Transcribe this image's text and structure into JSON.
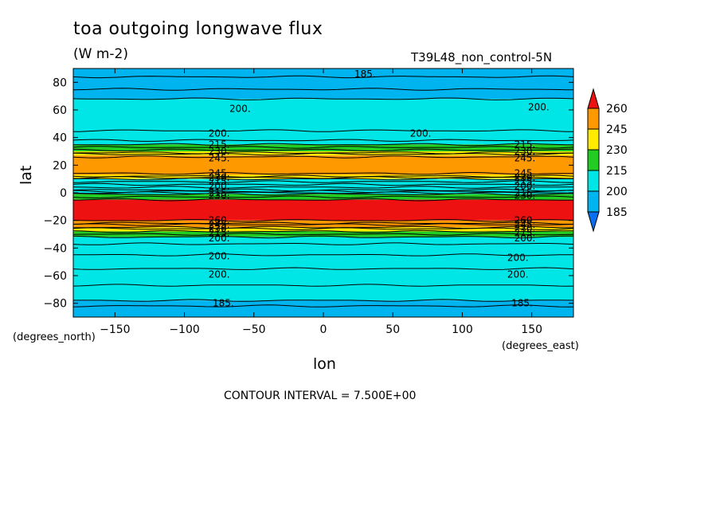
{
  "chart_data": {
    "type": "contour",
    "title": "toa outgoing longwave flux",
    "units": "(W m-2)",
    "dataset": "T39L48_non_control-5N",
    "xlabel": "lon",
    "ylabel": "lat",
    "xunits": "(degrees_east)",
    "yunits": "(degrees_north)",
    "xlim": [
      -180,
      180
    ],
    "ylim": [
      -90,
      90
    ],
    "xticks": [
      -150,
      -100,
      -50,
      0,
      50,
      100,
      150
    ],
    "yticks": [
      -80,
      -60,
      -40,
      -20,
      0,
      20,
      40,
      60,
      80
    ],
    "contour_interval": "CONTOUR INTERVAL = 7.500E+00",
    "colorbar_levels": [
      "185",
      "200",
      "215",
      "230",
      "245",
      "260"
    ],
    "colorbar_colors": [
      "#0a6ef0",
      "#00b4f0",
      "#00e6e6",
      "#22cc22",
      "#ffea00",
      "#ff9900",
      "#ee1111"
    ],
    "bands": [
      {
        "lat_top": 90,
        "lat_bottom": 68,
        "value": 195
      },
      {
        "lat_top": 68,
        "lat_bottom": 45,
        "value": 200
      },
      {
        "lat_top": 45,
        "lat_bottom": 35,
        "value": 205
      },
      {
        "lat_top": 35,
        "lat_bottom": 30,
        "value": 220
      },
      {
        "lat_top": 30,
        "lat_bottom": 27,
        "value": 235
      },
      {
        "lat_top": 27,
        "lat_bottom": 13,
        "value": 250
      },
      {
        "lat_top": 13,
        "lat_bottom": 10,
        "value": 235
      },
      {
        "lat_top": 10,
        "lat_bottom": 4,
        "value": 210
      },
      {
        "lat_top": 4,
        "lat_bottom": -1,
        "value": 205
      },
      {
        "lat_top": -1,
        "lat_bottom": -5,
        "value": 215
      },
      {
        "lat_top": -5,
        "lat_bottom": -20,
        "value": 265
      },
      {
        "lat_top": -20,
        "lat_bottom": -25,
        "value": 250
      },
      {
        "lat_top": -25,
        "lat_bottom": -28,
        "value": 235
      },
      {
        "lat_top": -28,
        "lat_bottom": -32,
        "value": 220
      },
      {
        "lat_top": -32,
        "lat_bottom": -45,
        "value": 200
      },
      {
        "lat_top": -45,
        "lat_bottom": -55,
        "value": 205
      },
      {
        "lat_top": -55,
        "lat_bottom": -78,
        "value": 200
      },
      {
        "lat_top": -78,
        "lat_bottom": -90,
        "value": 185
      }
    ],
    "contour_lines_lat": [
      84,
      75,
      68,
      45,
      38,
      35,
      33,
      31,
      29,
      28,
      26,
      14,
      12,
      11,
      10,
      8,
      6,
      4,
      2,
      1,
      0,
      -1,
      -3,
      -5,
      -20,
      -22,
      -23,
      -25,
      -26,
      -28,
      -30,
      -32,
      -37,
      -45,
      -55,
      -67,
      -78,
      -82
    ],
    "contour_labels": [
      {
        "text": "185.",
        "lon": 30,
        "lat": 86
      },
      {
        "text": "200.",
        "lon": -60,
        "lat": 61
      },
      {
        "text": "200.",
        "lon": 155,
        "lat": 62
      },
      {
        "text": "200.",
        "lon": 70,
        "lat": 43
      },
      {
        "text": "200.",
        "lon": -75,
        "lat": 43
      },
      {
        "text": "215.",
        "lon": -75,
        "lat": 35
      },
      {
        "text": "230.",
        "lon": -75,
        "lat": 30
      },
      {
        "text": "245.",
        "lon": -75,
        "lat": 25
      },
      {
        "text": "215.",
        "lon": 145,
        "lat": 35
      },
      {
        "text": "230.",
        "lon": 145,
        "lat": 30
      },
      {
        "text": "245.",
        "lon": 145,
        "lat": 25
      },
      {
        "text": "245.",
        "lon": -75,
        "lat": 14
      },
      {
        "text": "230.",
        "lon": -75,
        "lat": 11
      },
      {
        "text": "215.",
        "lon": -75,
        "lat": 8
      },
      {
        "text": "200.",
        "lon": -75,
        "lat": 5
      },
      {
        "text": "215.",
        "lon": -75,
        "lat": 0
      },
      {
        "text": "230.",
        "lon": -75,
        "lat": -2
      },
      {
        "text": "245.",
        "lon": 145,
        "lat": 14
      },
      {
        "text": "230.",
        "lon": 145,
        "lat": 11
      },
      {
        "text": "215.",
        "lon": 145,
        "lat": 8
      },
      {
        "text": "200.",
        "lon": 145,
        "lat": 5
      },
      {
        "text": "215.",
        "lon": 145,
        "lat": 0
      },
      {
        "text": "230.",
        "lon": 145,
        "lat": -2
      },
      {
        "text": "260.",
        "lon": -75,
        "lat": -20
      },
      {
        "text": "245.",
        "lon": -75,
        "lat": -23
      },
      {
        "text": "230.",
        "lon": -75,
        "lat": -26
      },
      {
        "text": "215.",
        "lon": -75,
        "lat": -29
      },
      {
        "text": "200.",
        "lon": -75,
        "lat": -33
      },
      {
        "text": "260.",
        "lon": 145,
        "lat": -20
      },
      {
        "text": "245.",
        "lon": 145,
        "lat": -23
      },
      {
        "text": "230.",
        "lon": 145,
        "lat": -26
      },
      {
        "text": "215.",
        "lon": 145,
        "lat": -29
      },
      {
        "text": "200.",
        "lon": 145,
        "lat": -33
      },
      {
        "text": "200.",
        "lon": -75,
        "lat": -46
      },
      {
        "text": "200.",
        "lon": 140,
        "lat": -47
      },
      {
        "text": "200.",
        "lon": -75,
        "lat": -59
      },
      {
        "text": "200.",
        "lon": 140,
        "lat": -59
      },
      {
        "text": "185.",
        "lon": -72,
        "lat": -80
      },
      {
        "text": "185.",
        "lon": 143,
        "lat": -80
      }
    ]
  }
}
